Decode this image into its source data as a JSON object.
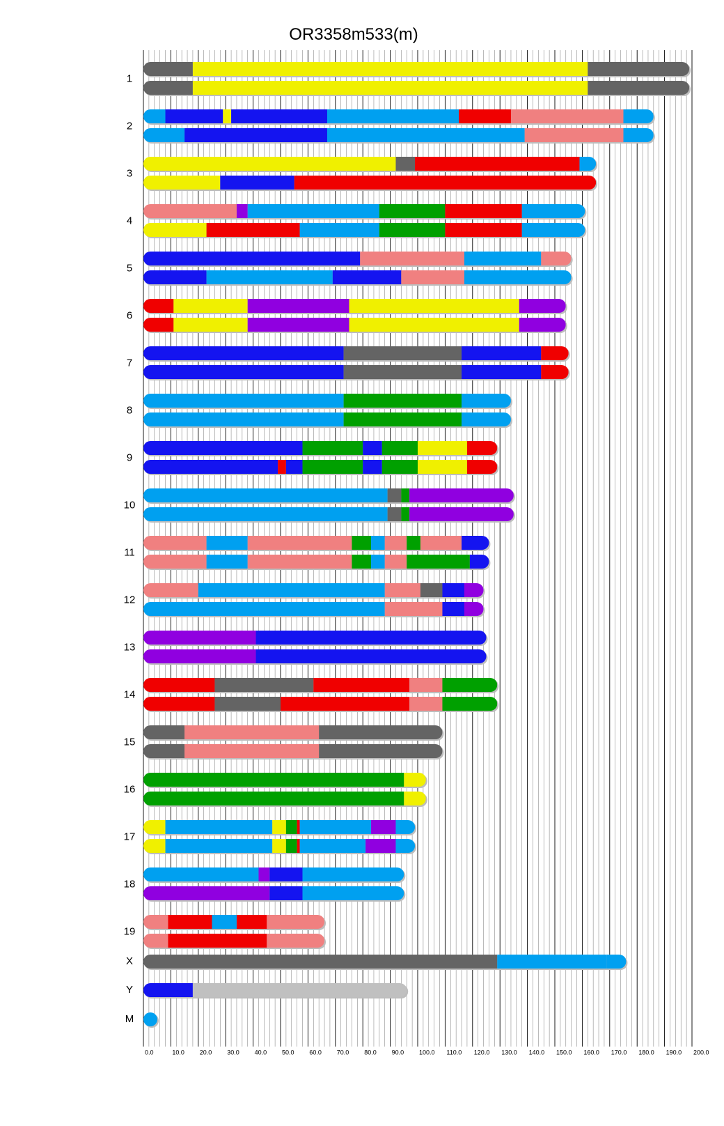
{
  "chart_data": {
    "type": "chromosome_haplotype_map",
    "title": "OR3358m533(m)",
    "xlim": [
      0,
      200
    ],
    "x_ticks": [
      "0.0",
      "10.0",
      "20.0",
      "30.0",
      "40.0",
      "50.0",
      "60.0",
      "70.0",
      "80.0",
      "90.0",
      "100.0",
      "110.0",
      "120.0",
      "130.0",
      "140.0",
      "150.0",
      "160.0",
      "170.0",
      "180.0",
      "190.0",
      "200.0"
    ],
    "minor_gridlines_every": 2,
    "grid": true,
    "color_key": {
      "yellow": "#f0f000",
      "dark_gray": "#646464",
      "light_gray": "#c0c0c0",
      "blue": "#1414f0",
      "light_blue": "#00a0f0",
      "red": "#f00000",
      "pink": "#f08080",
      "purple": "#9000e0",
      "green": "#00a000"
    },
    "chromosomes": [
      {
        "name": "1",
        "haplotypes": [
          [
            [
              0,
              18,
              "dark_gray"
            ],
            [
              18,
              162,
              "yellow"
            ],
            [
              162,
              199,
              "dark_gray"
            ]
          ],
          [
            [
              0,
              18,
              "dark_gray"
            ],
            [
              18,
              162,
              "yellow"
            ],
            [
              162,
              199,
              "dark_gray"
            ]
          ]
        ]
      },
      {
        "name": "2",
        "haplotypes": [
          [
            [
              0,
              8,
              "light_blue"
            ],
            [
              8,
              29,
              "blue"
            ],
            [
              29,
              32,
              "yellow"
            ],
            [
              32,
              67,
              "blue"
            ],
            [
              67,
              115,
              "light_blue"
            ],
            [
              115,
              134,
              "red"
            ],
            [
              134,
              175,
              "pink"
            ],
            [
              175,
              186,
              "light_blue"
            ]
          ],
          [
            [
              0,
              15,
              "light_blue"
            ],
            [
              15,
              67,
              "blue"
            ],
            [
              67,
              139,
              "light_blue"
            ],
            [
              139,
              175,
              "pink"
            ],
            [
              175,
              186,
              "light_blue"
            ]
          ]
        ]
      },
      {
        "name": "3",
        "haplotypes": [
          [
            [
              0,
              92,
              "yellow"
            ],
            [
              92,
              99,
              "dark_gray"
            ],
            [
              99,
              159,
              "red"
            ],
            [
              159,
              165,
              "light_blue"
            ]
          ],
          [
            [
              0,
              28,
              "yellow"
            ],
            [
              28,
              55,
              "blue"
            ],
            [
              55,
              165,
              "red"
            ]
          ]
        ]
      },
      {
        "name": "4",
        "haplotypes": [
          [
            [
              0,
              34,
              "pink"
            ],
            [
              34,
              38,
              "purple"
            ],
            [
              38,
              86,
              "light_blue"
            ],
            [
              86,
              110,
              "green"
            ],
            [
              110,
              138,
              "red"
            ],
            [
              138,
              161,
              "light_blue"
            ]
          ],
          [
            [
              0,
              23,
              "yellow"
            ],
            [
              23,
              57,
              "red"
            ],
            [
              57,
              86,
              "light_blue"
            ],
            [
              86,
              110,
              "green"
            ],
            [
              110,
              138,
              "red"
            ],
            [
              138,
              161,
              "light_blue"
            ]
          ]
        ]
      },
      {
        "name": "5",
        "haplotypes": [
          [
            [
              0,
              79,
              "blue"
            ],
            [
              79,
              117,
              "pink"
            ],
            [
              117,
              145,
              "light_blue"
            ],
            [
              145,
              156,
              "pink"
            ]
          ],
          [
            [
              0,
              23,
              "blue"
            ],
            [
              23,
              69,
              "light_blue"
            ],
            [
              69,
              94,
              "blue"
            ],
            [
              94,
              117,
              "pink"
            ],
            [
              117,
              156,
              "light_blue"
            ]
          ]
        ]
      },
      {
        "name": "6",
        "haplotypes": [
          [
            [
              0,
              11,
              "red"
            ],
            [
              11,
              38,
              "yellow"
            ],
            [
              38,
              75,
              "purple"
            ],
            [
              75,
              137,
              "yellow"
            ],
            [
              137,
              154,
              "purple"
            ]
          ],
          [
            [
              0,
              11,
              "red"
            ],
            [
              11,
              38,
              "yellow"
            ],
            [
              38,
              75,
              "purple"
            ],
            [
              75,
              137,
              "yellow"
            ],
            [
              137,
              154,
              "purple"
            ]
          ]
        ]
      },
      {
        "name": "7",
        "haplotypes": [
          [
            [
              0,
              73,
              "blue"
            ],
            [
              73,
              116,
              "dark_gray"
            ],
            [
              116,
              145,
              "blue"
            ],
            [
              145,
              155,
              "red"
            ]
          ],
          [
            [
              0,
              73,
              "blue"
            ],
            [
              73,
              116,
              "dark_gray"
            ],
            [
              116,
              145,
              "blue"
            ],
            [
              145,
              155,
              "red"
            ]
          ]
        ]
      },
      {
        "name": "8",
        "haplotypes": [
          [
            [
              0,
              73,
              "light_blue"
            ],
            [
              73,
              116,
              "green"
            ],
            [
              116,
              134,
              "light_blue"
            ]
          ],
          [
            [
              0,
              73,
              "light_blue"
            ],
            [
              73,
              116,
              "green"
            ],
            [
              116,
              134,
              "light_blue"
            ]
          ]
        ]
      },
      {
        "name": "9",
        "haplotypes": [
          [
            [
              0,
              58,
              "blue"
            ],
            [
              58,
              80,
              "green"
            ],
            [
              80,
              87,
              "blue"
            ],
            [
              87,
              100,
              "green"
            ],
            [
              100,
              118,
              "yellow"
            ],
            [
              118,
              129,
              "red"
            ]
          ],
          [
            [
              0,
              49,
              "blue"
            ],
            [
              49,
              52,
              "red"
            ],
            [
              52,
              58,
              "blue"
            ],
            [
              58,
              80,
              "green"
            ],
            [
              80,
              87,
              "blue"
            ],
            [
              87,
              100,
              "green"
            ],
            [
              100,
              118,
              "yellow"
            ],
            [
              118,
              129,
              "red"
            ]
          ]
        ]
      },
      {
        "name": "10",
        "haplotypes": [
          [
            [
              0,
              89,
              "light_blue"
            ],
            [
              89,
              94,
              "dark_gray"
            ],
            [
              94,
              97,
              "green"
            ],
            [
              97,
              135,
              "purple"
            ]
          ],
          [
            [
              0,
              89,
              "light_blue"
            ],
            [
              89,
              94,
              "dark_gray"
            ],
            [
              94,
              97,
              "green"
            ],
            [
              97,
              135,
              "purple"
            ]
          ]
        ]
      },
      {
        "name": "11",
        "haplotypes": [
          [
            [
              0,
              23,
              "pink"
            ],
            [
              23,
              38,
              "light_blue"
            ],
            [
              38,
              76,
              "pink"
            ],
            [
              76,
              83,
              "green"
            ],
            [
              83,
              88,
              "light_blue"
            ],
            [
              88,
              96,
              "pink"
            ],
            [
              96,
              101,
              "green"
            ],
            [
              101,
              116,
              "pink"
            ],
            [
              116,
              126,
              "blue"
            ]
          ],
          [
            [
              0,
              23,
              "pink"
            ],
            [
              23,
              38,
              "light_blue"
            ],
            [
              38,
              76,
              "pink"
            ],
            [
              76,
              83,
              "green"
            ],
            [
              83,
              88,
              "light_blue"
            ],
            [
              88,
              96,
              "pink"
            ],
            [
              96,
              119,
              "green"
            ],
            [
              119,
              126,
              "blue"
            ]
          ]
        ]
      },
      {
        "name": "12",
        "haplotypes": [
          [
            [
              0,
              20,
              "pink"
            ],
            [
              20,
              88,
              "light_blue"
            ],
            [
              88,
              101,
              "pink"
            ],
            [
              101,
              109,
              "dark_gray"
            ],
            [
              109,
              117,
              "blue"
            ],
            [
              117,
              124,
              "purple"
            ]
          ],
          [
            [
              0,
              88,
              "light_blue"
            ],
            [
              88,
              109,
              "pink"
            ],
            [
              109,
              117,
              "blue"
            ],
            [
              117,
              124,
              "purple"
            ]
          ]
        ]
      },
      {
        "name": "13",
        "haplotypes": [
          [
            [
              0,
              41,
              "purple"
            ],
            [
              41,
              125,
              "blue"
            ]
          ],
          [
            [
              0,
              41,
              "purple"
            ],
            [
              41,
              125,
              "blue"
            ]
          ]
        ]
      },
      {
        "name": "14",
        "haplotypes": [
          [
            [
              0,
              26,
              "red"
            ],
            [
              26,
              62,
              "dark_gray"
            ],
            [
              62,
              97,
              "red"
            ],
            [
              97,
              109,
              "pink"
            ],
            [
              109,
              129,
              "green"
            ]
          ],
          [
            [
              0,
              26,
              "red"
            ],
            [
              26,
              50,
              "dark_gray"
            ],
            [
              50,
              97,
              "red"
            ],
            [
              97,
              109,
              "pink"
            ],
            [
              109,
              129,
              "green"
            ]
          ]
        ]
      },
      {
        "name": "15",
        "haplotypes": [
          [
            [
              0,
              15,
              "dark_gray"
            ],
            [
              15,
              64,
              "pink"
            ],
            [
              64,
              109,
              "dark_gray"
            ]
          ],
          [
            [
              0,
              15,
              "dark_gray"
            ],
            [
              15,
              64,
              "pink"
            ],
            [
              64,
              109,
              "dark_gray"
            ]
          ]
        ]
      },
      {
        "name": "16",
        "haplotypes": [
          [
            [
              0,
              95,
              "green"
            ],
            [
              95,
              103,
              "yellow"
            ]
          ],
          [
            [
              0,
              95,
              "green"
            ],
            [
              95,
              103,
              "yellow"
            ]
          ]
        ]
      },
      {
        "name": "17",
        "haplotypes": [
          [
            [
              0,
              8,
              "yellow"
            ],
            [
              8,
              47,
              "light_blue"
            ],
            [
              47,
              52,
              "yellow"
            ],
            [
              52,
              56,
              "green"
            ],
            [
              56,
              57,
              "red"
            ],
            [
              57,
              83,
              "light_blue"
            ],
            [
              83,
              92,
              "purple"
            ],
            [
              92,
              99,
              "light_blue"
            ]
          ],
          [
            [
              0,
              8,
              "yellow"
            ],
            [
              8,
              47,
              "light_blue"
            ],
            [
              47,
              52,
              "yellow"
            ],
            [
              52,
              56,
              "green"
            ],
            [
              56,
              57,
              "red"
            ],
            [
              57,
              81,
              "light_blue"
            ],
            [
              81,
              92,
              "purple"
            ],
            [
              92,
              99,
              "light_blue"
            ]
          ]
        ]
      },
      {
        "name": "18",
        "haplotypes": [
          [
            [
              0,
              42,
              "light_blue"
            ],
            [
              42,
              46,
              "purple"
            ],
            [
              46,
              58,
              "blue"
            ],
            [
              58,
              95,
              "light_blue"
            ]
          ],
          [
            [
              0,
              46,
              "purple"
            ],
            [
              46,
              58,
              "blue"
            ],
            [
              58,
              95,
              "light_blue"
            ]
          ]
        ]
      },
      {
        "name": "19",
        "haplotypes": [
          [
            [
              0,
              9,
              "pink"
            ],
            [
              9,
              25,
              "red"
            ],
            [
              25,
              34,
              "light_blue"
            ],
            [
              34,
              45,
              "red"
            ],
            [
              45,
              66,
              "pink"
            ]
          ],
          [
            [
              0,
              9,
              "pink"
            ],
            [
              9,
              45,
              "red"
            ],
            [
              45,
              66,
              "pink"
            ]
          ]
        ]
      },
      {
        "name": "X",
        "haplotypes": [
          [
            [
              0,
              129,
              "dark_gray"
            ],
            [
              129,
              169,
              "light_blue"
            ],
            [
              169,
              176,
              "light_blue"
            ]
          ]
        ]
      },
      {
        "name": "Y",
        "haplotypes": [
          [
            [
              0,
              18,
              "blue"
            ],
            [
              18,
              96,
              "light_gray"
            ]
          ]
        ]
      },
      {
        "name": "M",
        "haplotypes": [
          [
            [
              0,
              1,
              "light_blue"
            ]
          ]
        ]
      }
    ]
  }
}
